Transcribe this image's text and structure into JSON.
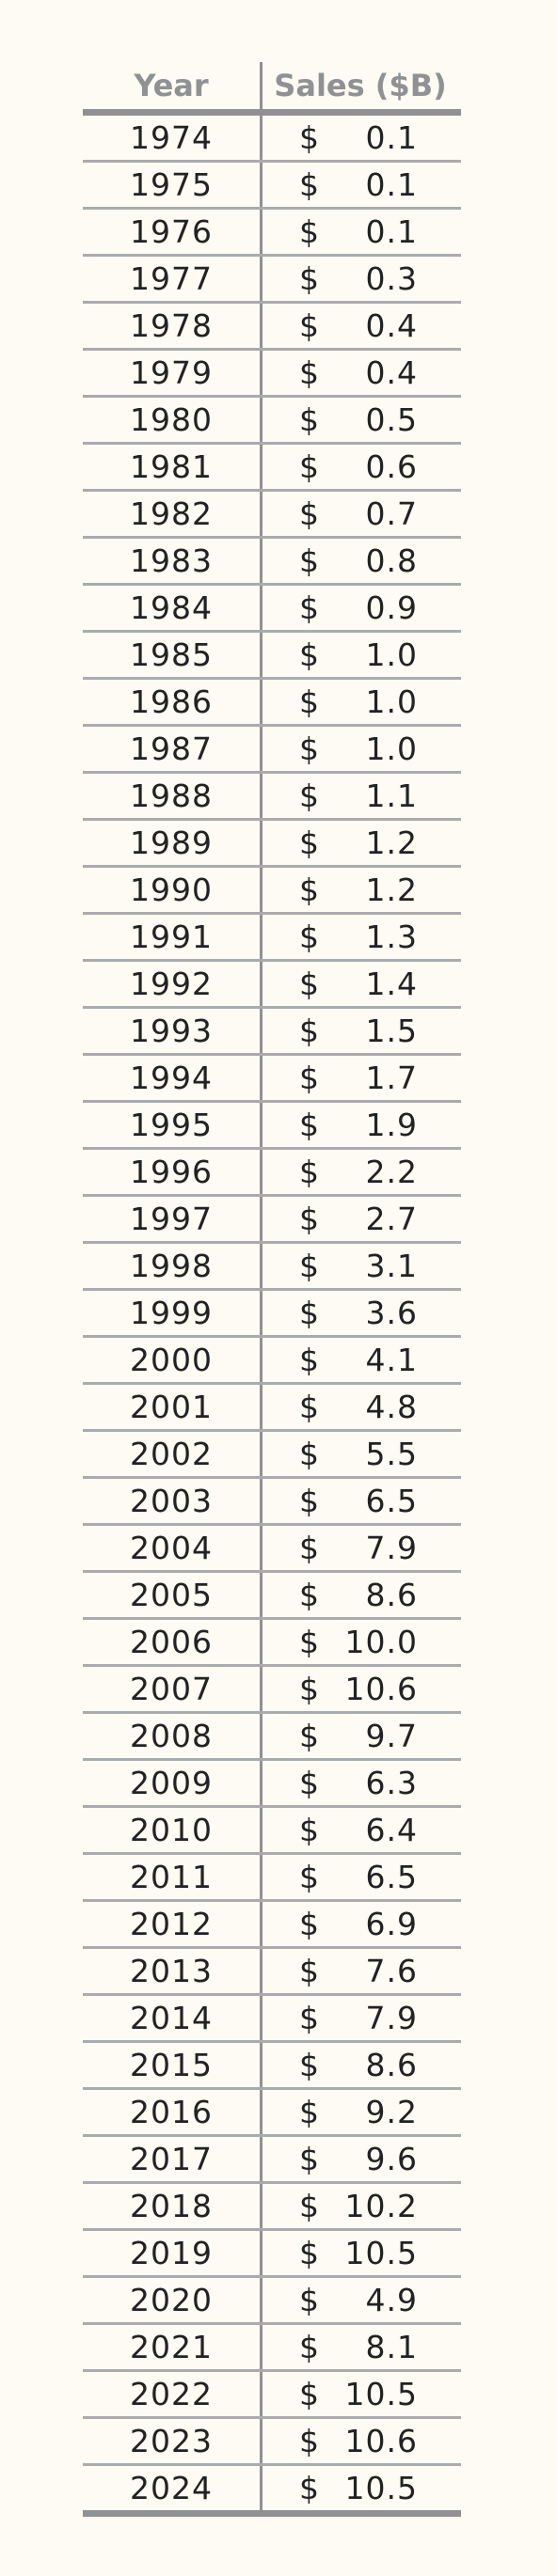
{
  "table": {
    "headers": {
      "year": "Year",
      "sales": "Sales ($B)"
    },
    "currency_symbol": "$",
    "rows": [
      {
        "year": "1974",
        "sales": "0.1"
      },
      {
        "year": "1975",
        "sales": "0.1"
      },
      {
        "year": "1976",
        "sales": "0.1"
      },
      {
        "year": "1977",
        "sales": "0.3"
      },
      {
        "year": "1978",
        "sales": "0.4"
      },
      {
        "year": "1979",
        "sales": "0.4"
      },
      {
        "year": "1980",
        "sales": "0.5"
      },
      {
        "year": "1981",
        "sales": "0.6"
      },
      {
        "year": "1982",
        "sales": "0.7"
      },
      {
        "year": "1983",
        "sales": "0.8"
      },
      {
        "year": "1984",
        "sales": "0.9"
      },
      {
        "year": "1985",
        "sales": "1.0"
      },
      {
        "year": "1986",
        "sales": "1.0"
      },
      {
        "year": "1987",
        "sales": "1.0"
      },
      {
        "year": "1988",
        "sales": "1.1"
      },
      {
        "year": "1989",
        "sales": "1.2"
      },
      {
        "year": "1990",
        "sales": "1.2"
      },
      {
        "year": "1991",
        "sales": "1.3"
      },
      {
        "year": "1992",
        "sales": "1.4"
      },
      {
        "year": "1993",
        "sales": "1.5"
      },
      {
        "year": "1994",
        "sales": "1.7"
      },
      {
        "year": "1995",
        "sales": "1.9"
      },
      {
        "year": "1996",
        "sales": "2.2"
      },
      {
        "year": "1997",
        "sales": "2.7"
      },
      {
        "year": "1998",
        "sales": "3.1"
      },
      {
        "year": "1999",
        "sales": "3.6"
      },
      {
        "year": "2000",
        "sales": "4.1"
      },
      {
        "year": "2001",
        "sales": "4.8"
      },
      {
        "year": "2002",
        "sales": "5.5"
      },
      {
        "year": "2003",
        "sales": "6.5"
      },
      {
        "year": "2004",
        "sales": "7.9"
      },
      {
        "year": "2005",
        "sales": "8.6"
      },
      {
        "year": "2006",
        "sales": "10.0"
      },
      {
        "year": "2007",
        "sales": "10.6"
      },
      {
        "year": "2008",
        "sales": "9.7"
      },
      {
        "year": "2009",
        "sales": "6.3"
      },
      {
        "year": "2010",
        "sales": "6.4"
      },
      {
        "year": "2011",
        "sales": "6.5"
      },
      {
        "year": "2012",
        "sales": "6.9"
      },
      {
        "year": "2013",
        "sales": "7.6"
      },
      {
        "year": "2014",
        "sales": "7.9"
      },
      {
        "year": "2015",
        "sales": "8.6"
      },
      {
        "year": "2016",
        "sales": "9.2"
      },
      {
        "year": "2017",
        "sales": "9.6"
      },
      {
        "year": "2018",
        "sales": "10.2"
      },
      {
        "year": "2019",
        "sales": "10.5"
      },
      {
        "year": "2020",
        "sales": "4.9"
      },
      {
        "year": "2021",
        "sales": "8.1"
      },
      {
        "year": "2022",
        "sales": "10.5"
      },
      {
        "year": "2023",
        "sales": "10.6"
      },
      {
        "year": "2024",
        "sales": "10.5"
      }
    ]
  },
  "colors": {
    "background": "#fdfbf3",
    "header_text": "#8f9192",
    "rule": "#a9abad",
    "text": "#222222"
  }
}
